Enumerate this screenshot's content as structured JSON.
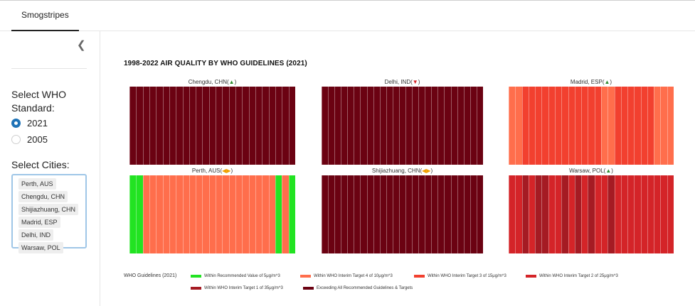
{
  "app": {
    "tab_label": "Smogstripes"
  },
  "sidebar": {
    "collapse_icon": "chevron-left-icon",
    "standard_label": "Select WHO Standard:",
    "standards": [
      {
        "label": "2021",
        "selected": true
      },
      {
        "label": "2005",
        "selected": false
      }
    ],
    "cities_label": "Select Cities:",
    "cities": [
      "Perth, AUS",
      "Chengdu, CHN",
      "Shijiazhuang, CHN",
      "Madrid, ESP",
      "Delhi, IND",
      "Warsaw, POL"
    ]
  },
  "chart_title": "1998-2022 AIR QUALITY BY WHO GUIDELINES (2021)",
  "colors": {
    "L0": "#22e322",
    "L4": "#ff6e4c",
    "L3": "#f2402f",
    "L2": "#d42428",
    "L1": "#a51b23",
    "L5": "#6b0212"
  },
  "panels": [
    {
      "city": "Chengdu, CHN",
      "trend": "▲",
      "trend_color": "#2e8b2e",
      "stripes": [
        "L5",
        "L5",
        "L5",
        "L5",
        "L5",
        "L5",
        "L5",
        "L5",
        "L5",
        "L5",
        "L5",
        "L5",
        "L5",
        "L5",
        "L5",
        "L5",
        "L5",
        "L5",
        "L5",
        "L5",
        "L5",
        "L5",
        "L5",
        "L5",
        "L5"
      ]
    },
    {
      "city": "Delhi, IND",
      "trend": "▼",
      "trend_color": "#d42428",
      "stripes": [
        "L5",
        "L5",
        "L5",
        "L5",
        "L5",
        "L5",
        "L5",
        "L5",
        "L5",
        "L5",
        "L5",
        "L5",
        "L5",
        "L5",
        "L5",
        "L5",
        "L5",
        "L5",
        "L5",
        "L5",
        "L5",
        "L5",
        "L5",
        "L5",
        "L5"
      ]
    },
    {
      "city": "Madrid, ESP",
      "trend": "▲",
      "trend_color": "#2e8b2e",
      "stripes": [
        "L4",
        "L4",
        "L3",
        "L3",
        "L3",
        "L3",
        "L3",
        "L3",
        "L3",
        "L3",
        "L3",
        "L3",
        "L3",
        "L3",
        "L4",
        "L4",
        "L3",
        "L3",
        "L3",
        "L3",
        "L3",
        "L3",
        "L4",
        "L4",
        "L4"
      ]
    },
    {
      "city": "Perth, AUS",
      "trend": "◀▶",
      "trend_color": "#f0a000",
      "stripes": [
        "L0",
        "L0",
        "L4",
        "L4",
        "L4",
        "L4",
        "L4",
        "L4",
        "L4",
        "L4",
        "L4",
        "L4",
        "L4",
        "L4",
        "L4",
        "L4",
        "L4",
        "L4",
        "L4",
        "L4",
        "L4",
        "L4",
        "L0",
        "L4",
        "L0"
      ]
    },
    {
      "city": "Shijiazhuang, CHN",
      "trend": "◀▶",
      "trend_color": "#f0a000",
      "stripes": [
        "L5",
        "L5",
        "L5",
        "L5",
        "L5",
        "L5",
        "L5",
        "L5",
        "L5",
        "L5",
        "L5",
        "L5",
        "L5",
        "L5",
        "L5",
        "L5",
        "L5",
        "L5",
        "L5",
        "L5",
        "L5",
        "L5",
        "L5",
        "L5",
        "L5"
      ]
    },
    {
      "city": "Warsaw, POL",
      "trend": "▲",
      "trend_color": "#2e8b2e",
      "stripes": [
        "L2",
        "L2",
        "L1",
        "L2",
        "L1",
        "L1",
        "L2",
        "L2",
        "L1",
        "L2",
        "L1",
        "L2",
        "L1",
        "L2",
        "L2",
        "L1",
        "L2",
        "L2",
        "L2",
        "L2",
        "L2",
        "L2",
        "L2",
        "L2",
        "L2"
      ]
    }
  ],
  "legend": {
    "title": "WHO Guidelines (2021)",
    "items": [
      {
        "key": "L0",
        "label": "Within Recommended Value of 5μg/m^3"
      },
      {
        "key": "L4",
        "label": "Within WHO Interim Target 4 of 10μg/m^3"
      },
      {
        "key": "L3",
        "label": "Within WHO Interim Target 3 of 15μg/m^3"
      },
      {
        "key": "L2",
        "label": "Within WHO Interim Target 2 of 25μg/m^3"
      },
      {
        "key": "L1",
        "label": "Within WHO Interim Target 1 of 35μg/m^3"
      },
      {
        "key": "L5",
        "label": "Exceeding All Recommended Guidelines & Targets"
      }
    ]
  }
}
